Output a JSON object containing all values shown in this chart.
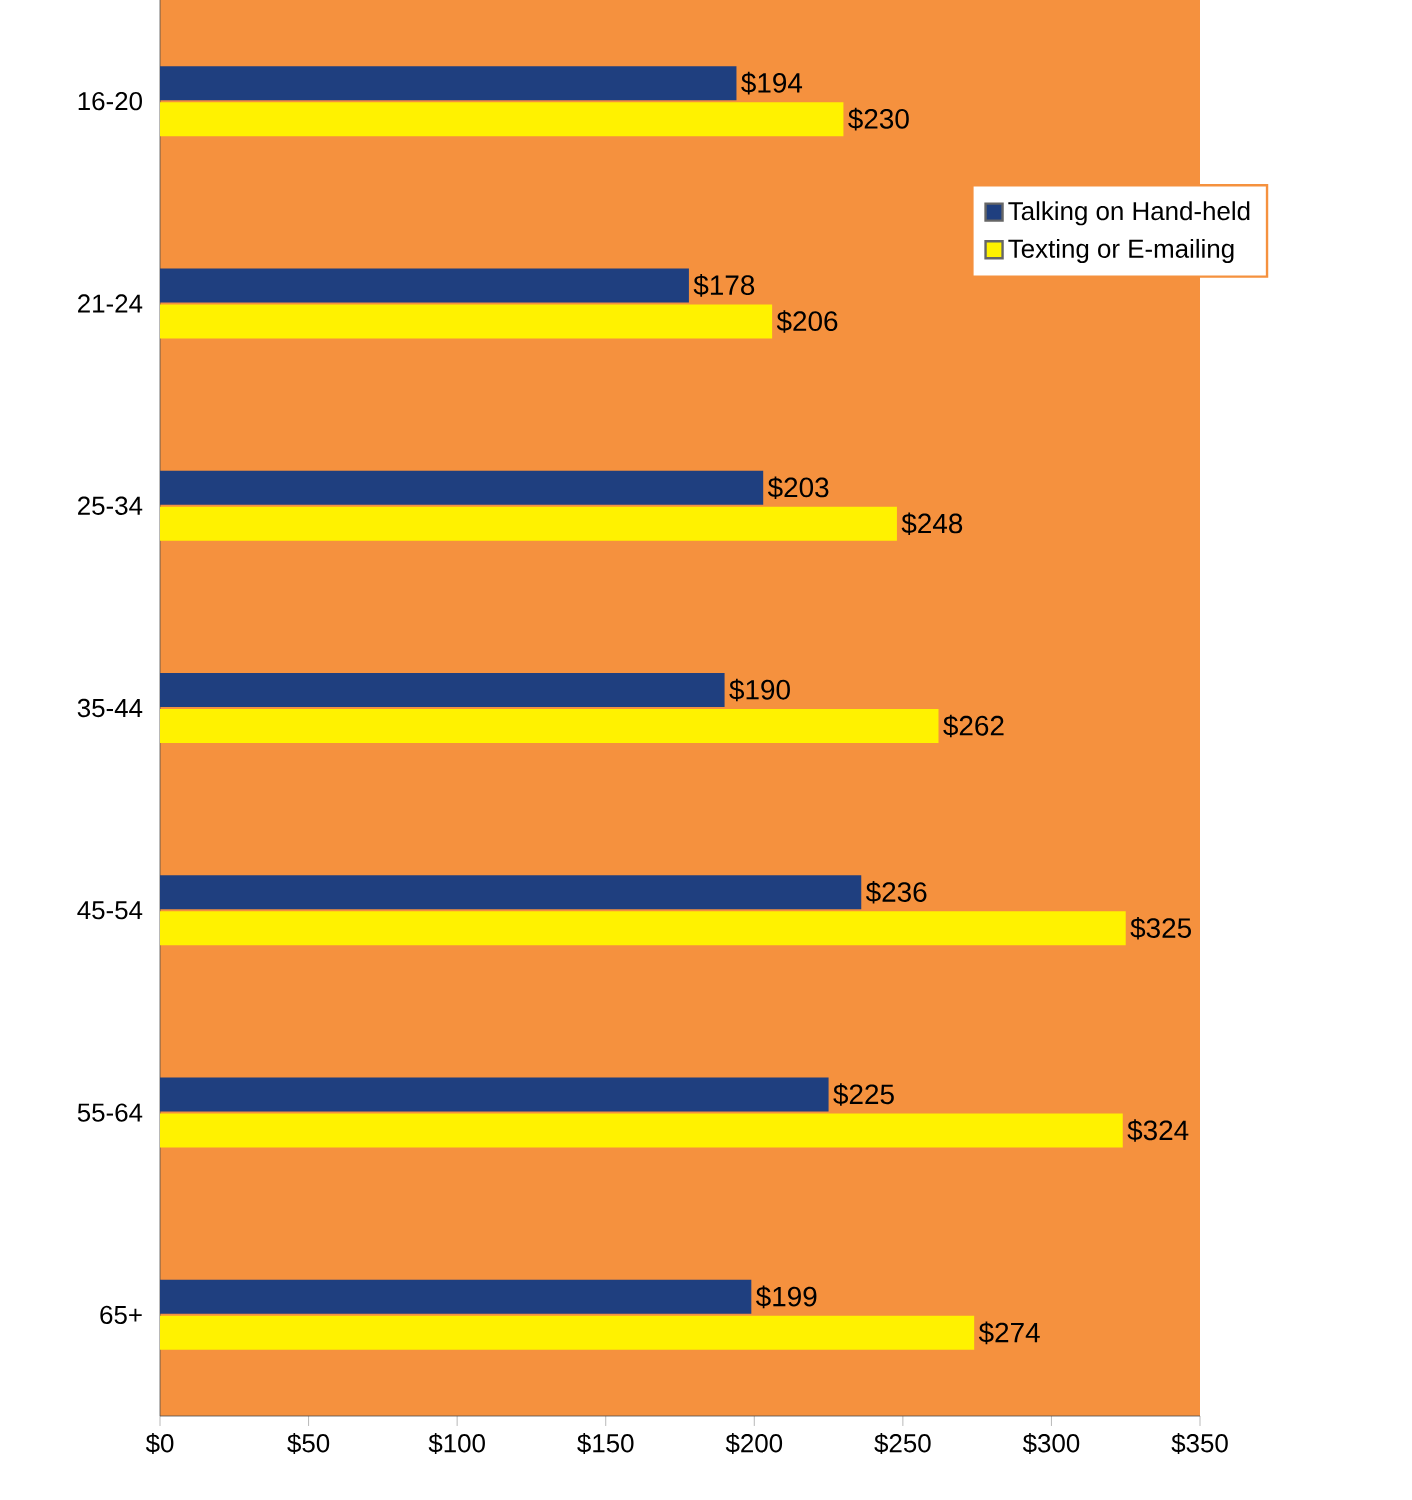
{
  "chart_data": {
    "type": "bar",
    "orientation": "horizontal",
    "categories": [
      "16-20",
      "21-24",
      "25-34",
      "35-44",
      "45-54",
      "55-64",
      "65+"
    ],
    "series": [
      {
        "name": "Talking on Hand-held",
        "color": "#1f3f7f",
        "values": [
          194,
          178,
          203,
          190,
          236,
          225,
          199
        ],
        "value_labels": [
          "$194",
          "$178",
          "$203",
          "$190",
          "$236",
          "$225",
          "$199"
        ]
      },
      {
        "name": "Texting or E-mailing",
        "color": "#fff200",
        "values": [
          230,
          206,
          248,
          262,
          325,
          324,
          274
        ],
        "value_labels": [
          "$230",
          "$206",
          "$248",
          "$262",
          "$325",
          "$324",
          "$274"
        ]
      }
    ],
    "xlim": [
      0,
      350
    ],
    "xticks": [
      {
        "value": 0,
        "label": "$0"
      },
      {
        "value": 50,
        "label": "$50"
      },
      {
        "value": 100,
        "label": "$100"
      },
      {
        "value": 150,
        "label": "$150"
      },
      {
        "value": 200,
        "label": "$200"
      },
      {
        "value": 250,
        "label": "$250"
      },
      {
        "value": 300,
        "label": "$300"
      },
      {
        "value": 350,
        "label": "$350"
      }
    ],
    "legend": "top right",
    "grid": false
  }
}
